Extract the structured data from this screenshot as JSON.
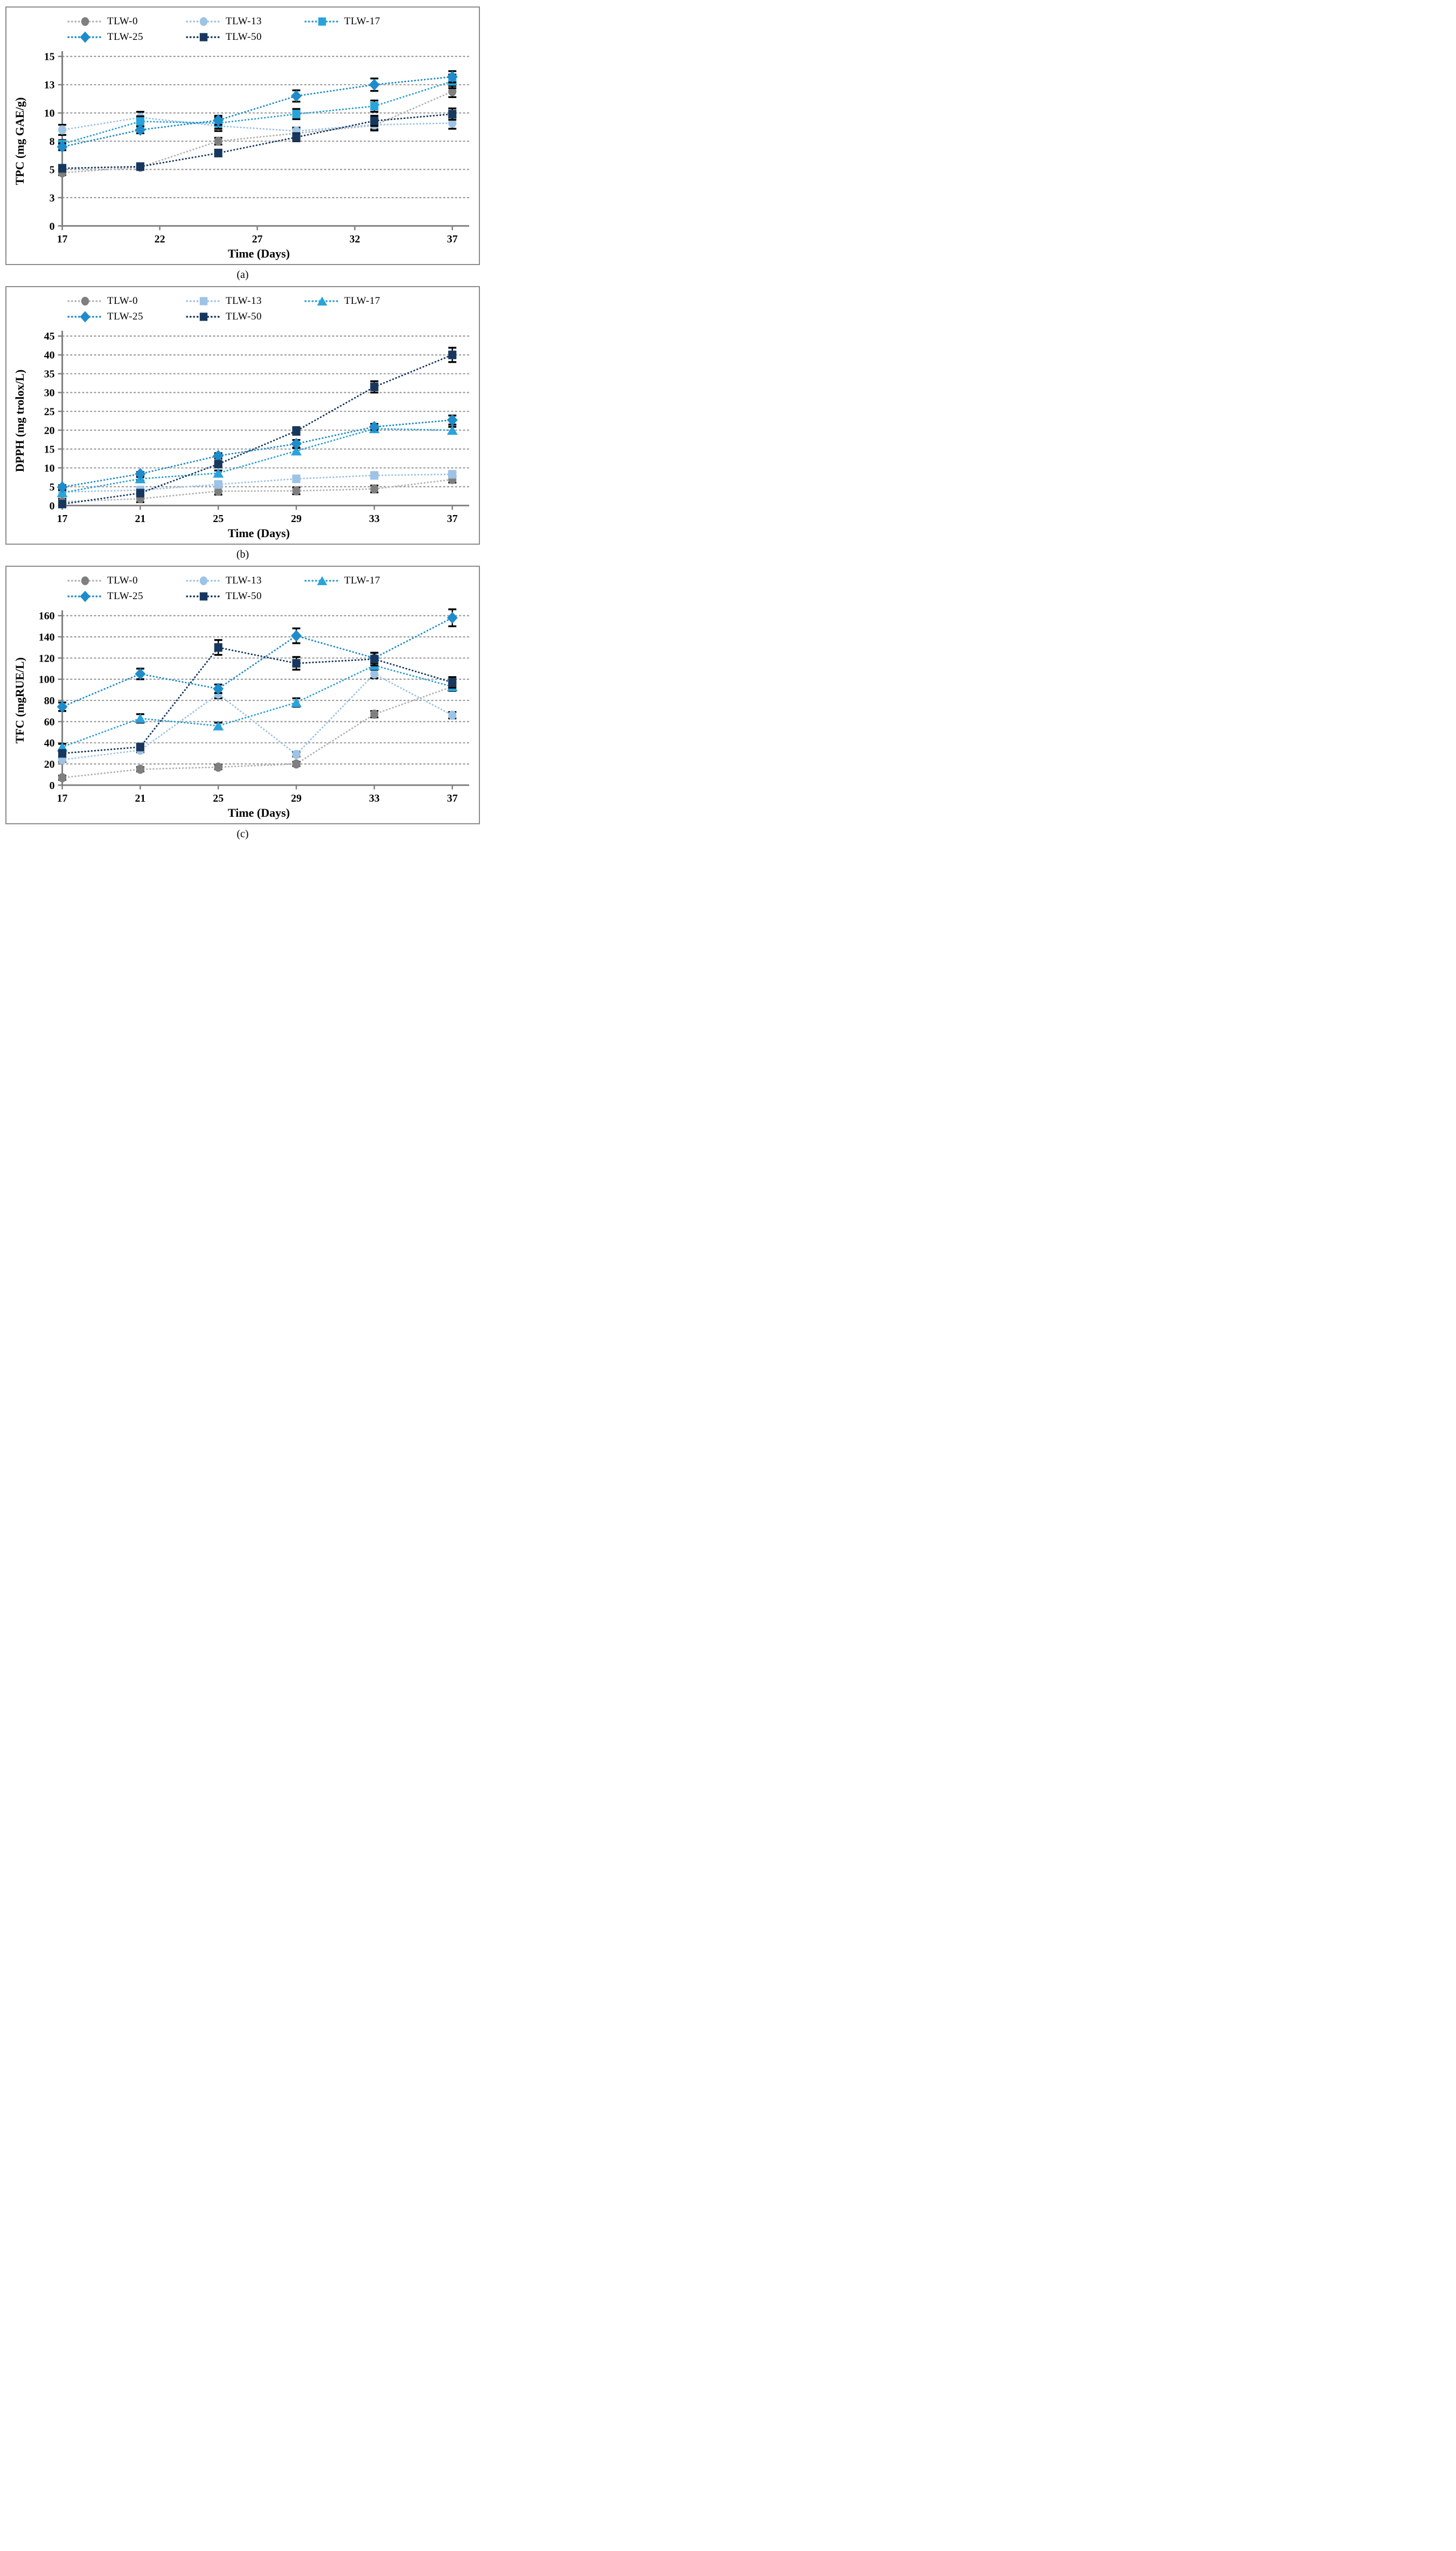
{
  "page": {
    "background": "#ffffff",
    "border_color": "#8c8c8c",
    "axis_color": "#7f7f7f",
    "gridline_color": "#9a9a9a",
    "errorbar_color": "#000000"
  },
  "chart_data": [
    {
      "type": "line",
      "caption": "(a)",
      "xlabel": "Time (Days)",
      "ylabel": "TPC (mg GAE/g)",
      "x": [
        17,
        21,
        25,
        29,
        33,
        37
      ],
      "x_ticks": [
        17,
        22,
        27,
        32,
        37
      ],
      "xlim": [
        17,
        37.7
      ],
      "ylim": [
        0,
        15
      ],
      "y_step": 2.5,
      "y_tick_labels": [
        "0",
        "3",
        "5",
        "8",
        "10",
        "13",
        "15"
      ],
      "grid": true,
      "legend_position": "top",
      "series": [
        {
          "name": "TLW-0",
          "marker": "circle",
          "color": "#7f7f7f",
          "line_color": "#b3b3b3",
          "values": [
            4.7,
            5.2,
            7.5,
            8.2,
            8.9,
            11.9
          ],
          "errors": [
            0.2,
            0.15,
            0.3,
            0.3,
            0.35,
            0.5
          ]
        },
        {
          "name": "TLW-13",
          "marker": "circle",
          "color": "#9dc3e6",
          "line_color": "#9dc3e6",
          "values": [
            8.5,
            9.6,
            8.85,
            8.4,
            8.95,
            9.1
          ],
          "errors": [
            0.45,
            0.5,
            0.45,
            0.3,
            0.5,
            0.5
          ]
        },
        {
          "name": "TLW-17",
          "marker": "square",
          "color": "#29a3dc",
          "line_color": "#2ba0d8",
          "values": [
            7.25,
            9.25,
            9.1,
            9.9,
            10.6,
            12.8
          ],
          "errors": [
            0.35,
            0.45,
            0.5,
            0.45,
            0.5,
            0.6
          ]
        },
        {
          "name": "TLW-25",
          "marker": "diamond",
          "color": "#1e8ccb",
          "line_color": "#1e8ccb",
          "values": [
            7.0,
            8.5,
            9.35,
            11.5,
            12.5,
            13.2
          ],
          "errors": [
            0.3,
            0.3,
            0.4,
            0.5,
            0.55,
            0.5
          ]
        },
        {
          "name": "TLW-50",
          "marker": "square",
          "color": "#17375e",
          "line_color": "#17375e",
          "values": [
            5.1,
            5.25,
            6.45,
            7.85,
            9.3,
            9.9
          ],
          "errors": [
            0.3,
            0.2,
            0.3,
            0.35,
            0.45,
            0.5
          ]
        }
      ]
    },
    {
      "type": "line",
      "caption": "(b)",
      "xlabel": "Time (Days)",
      "ylabel": "DPPH (mg trolox/L)",
      "x": [
        17,
        21,
        25,
        29,
        33,
        37
      ],
      "x_ticks": [
        17,
        21,
        25,
        29,
        33,
        37
      ],
      "xlim": [
        17,
        37.7
      ],
      "ylim": [
        0,
        45
      ],
      "y_step": 5,
      "y_tick_labels": [
        "0",
        "5",
        "10",
        "15",
        "20",
        "25",
        "30",
        "35",
        "40",
        "45"
      ],
      "grid": true,
      "legend_position": "top",
      "series": [
        {
          "name": "TLW-0",
          "marker": "circle",
          "color": "#7f7f7f",
          "line_color": "#b3b3b3",
          "values": [
            1.0,
            1.8,
            3.8,
            3.9,
            4.4,
            6.9
          ],
          "errors": [
            0.8,
            0.9,
            0.9,
            0.9,
            0.9,
            0.8
          ]
        },
        {
          "name": "TLW-13",
          "marker": "square",
          "color": "#9dc3e6",
          "line_color": "#9dc3e6",
          "values": [
            3.6,
            4.1,
            5.6,
            7.1,
            8.0,
            8.3
          ],
          "errors": [
            0.4,
            0.4,
            0.5,
            0.5,
            0.5,
            0.5
          ]
        },
        {
          "name": "TLW-17",
          "marker": "triangle",
          "color": "#29a3dc",
          "line_color": "#2ba0d8",
          "values": [
            3.4,
            7.1,
            8.6,
            14.5,
            20.4,
            20.0
          ],
          "errors": [
            0.7,
            0.5,
            0.7,
            0.8,
            0.7,
            0.9
          ]
        },
        {
          "name": "TLW-25",
          "marker": "diamond",
          "color": "#1e8ccb",
          "line_color": "#1e8ccb",
          "values": [
            4.9,
            8.4,
            13.2,
            16.4,
            20.9,
            22.7
          ],
          "errors": [
            0.5,
            0.5,
            0.7,
            1.0,
            0.8,
            1.2
          ]
        },
        {
          "name": "TLW-50",
          "marker": "square",
          "color": "#17375e",
          "line_color": "#17375e",
          "values": [
            0.4,
            3.3,
            11.0,
            19.8,
            31.5,
            40.0
          ],
          "errors": [
            0.3,
            0.5,
            0.6,
            1.0,
            1.5,
            1.9
          ]
        }
      ]
    },
    {
      "type": "line",
      "caption": "(c)",
      "xlabel": "Time (Days)",
      "ylabel": "TFC (mgRUE/L)",
      "x": [
        17,
        21,
        25,
        29,
        33,
        37
      ],
      "x_ticks": [
        17,
        21,
        25,
        29,
        33,
        37
      ],
      "xlim": [
        17,
        37.7
      ],
      "ylim": [
        0,
        160
      ],
      "y_step": 20,
      "y_tick_labels": [
        "0",
        "20",
        "40",
        "60",
        "80",
        "100",
        "120",
        "140",
        "160"
      ],
      "grid": true,
      "legend_position": "top",
      "series": [
        {
          "name": "TLW-0",
          "marker": "circle",
          "color": "#7f7f7f",
          "line_color": "#b3b3b3",
          "values": [
            7,
            15,
            17,
            20,
            67,
            93
          ],
          "errors": [
            2,
            2,
            2,
            2,
            3,
            3
          ]
        },
        {
          "name": "TLW-13",
          "marker": "circle",
          "color": "#9dc3e6",
          "line_color": "#9dc3e6",
          "values": [
            24,
            33,
            86,
            29,
            105,
            66
          ],
          "errors": [
            2,
            2,
            4,
            2,
            4,
            3
          ]
        },
        {
          "name": "TLW-17",
          "marker": "triangle",
          "color": "#29a3dc",
          "line_color": "#2ba0d8",
          "values": [
            36,
            63,
            56,
            78,
            113,
            93
          ],
          "errors": [
            3,
            4,
            3,
            4,
            4,
            4
          ]
        },
        {
          "name": "TLW-25",
          "marker": "diamond",
          "color": "#1e8ccb",
          "line_color": "#1e8ccb",
          "values": [
            74,
            105,
            91,
            141,
            120,
            158
          ],
          "errors": [
            4,
            5,
            4,
            7,
            5,
            8
          ]
        },
        {
          "name": "TLW-50",
          "marker": "square",
          "color": "#17375e",
          "line_color": "#17375e",
          "values": [
            30,
            36,
            130,
            115,
            119,
            97
          ],
          "errors": [
            3,
            3,
            7,
            6,
            6,
            5
          ]
        }
      ]
    }
  ]
}
